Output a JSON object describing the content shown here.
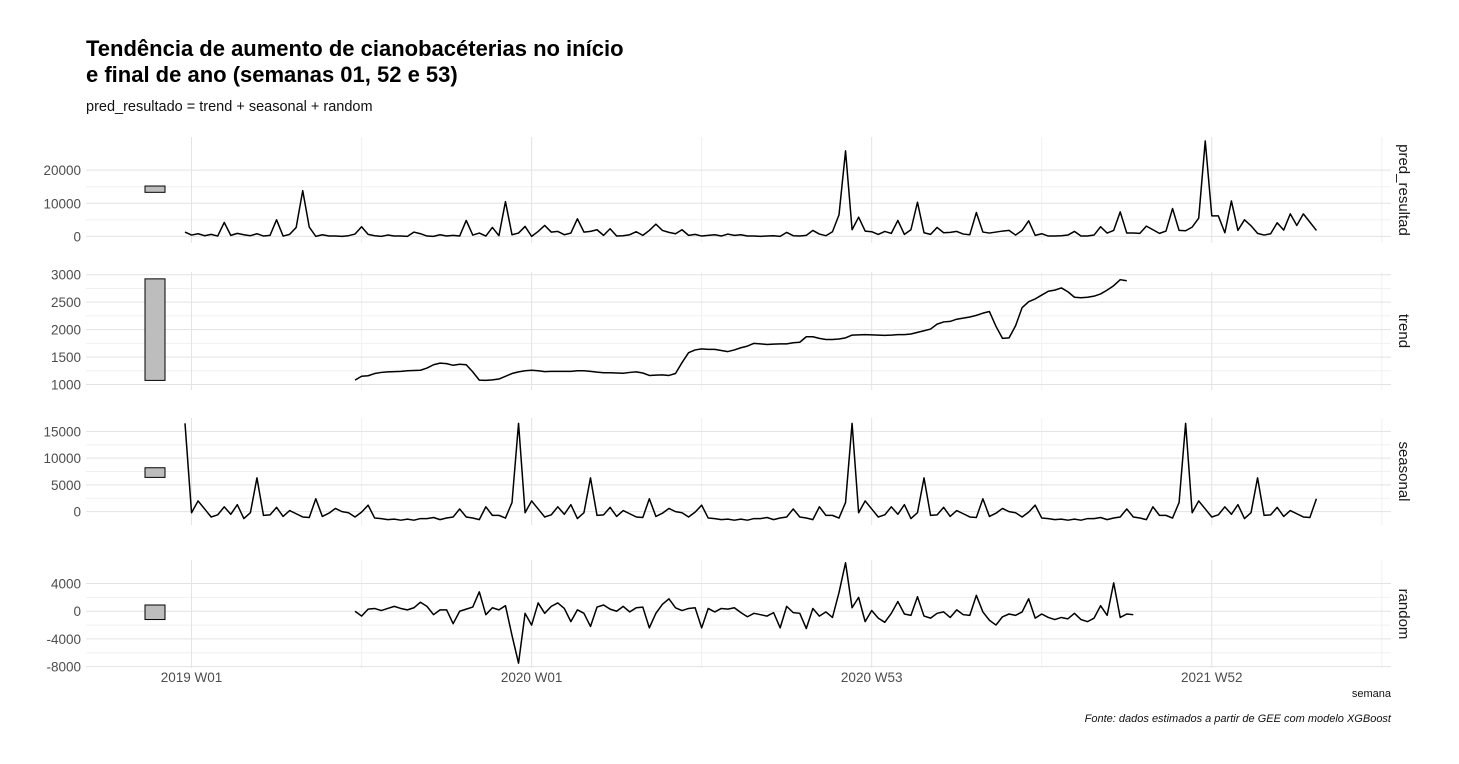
{
  "title": "Tendência de aumento de cianobacéterias no início\ne final de ano (semanas 01, 52 e 53)",
  "subtitle": "pred_resultado = trend + seasonal + random",
  "caption": "Fonte: dados estimados a partir de GEE com modelo XGBoost",
  "chart_data": {
    "type": "line",
    "xlabel": "semana",
    "x_tick_labels": [
      "2019 W01",
      "2020 W01",
      "2020 W53",
      "2021 W52"
    ],
    "x_tick_week_index": [
      1,
      53,
      105,
      157
    ],
    "x_unit": "week index counted from 2019 W01",
    "grid": true,
    "panels": [
      {
        "name": "pred_resultad",
        "ylim": [
          -2000,
          30000
        ],
        "yticks": [
          0,
          10000,
          20000
        ],
        "ytick_labels": [
          "0",
          "10000",
          "20000"
        ],
        "range_bar": [
          13300,
          15200
        ],
        "start_week": 0,
        "values": [
          1300,
          400,
          800,
          200,
          600,
          100,
          4200,
          300,
          900,
          500,
          200,
          800,
          100,
          300,
          5000,
          100,
          600,
          2700,
          13800,
          2800,
          0,
          500,
          100,
          100,
          0,
          200,
          700,
          2900,
          600,
          200,
          0,
          400,
          100,
          100,
          0,
          1300,
          800,
          100,
          0,
          500,
          100,
          300,
          100,
          4800,
          400,
          1000,
          100,
          2700,
          200,
          10500,
          500,
          1000,
          3000,
          0,
          1500,
          3300,
          1300,
          1500,
          500,
          1000,
          5300,
          1300,
          1500,
          2000,
          300,
          2300,
          100,
          200,
          500,
          1400,
          300,
          1800,
          3700,
          1800,
          1200,
          800,
          2000,
          300,
          600,
          100,
          300,
          500,
          100,
          700,
          300,
          500,
          100,
          100,
          0,
          100,
          200,
          0,
          1200,
          200,
          100,
          300,
          1800,
          700,
          200,
          1400,
          6500,
          25800,
          2000,
          5800,
          1600,
          1400,
          600,
          1500,
          900,
          4800,
          600,
          2000,
          10300,
          1100,
          600,
          2700,
          1100,
          1200,
          1500,
          700,
          500,
          7200,
          1300,
          1000,
          1300,
          1600,
          1800,
          400,
          1800,
          4700,
          300,
          800,
          100,
          100,
          200,
          400,
          1500,
          100,
          100,
          400,
          2900,
          1000,
          1800,
          7400,
          1000,
          1000,
          900,
          3100,
          2000,
          900,
          1600,
          8400,
          1800,
          1700,
          2800,
          5500,
          28800,
          6200,
          6200,
          1100,
          10700,
          1800,
          5000,
          3200,
          900,
          400,
          800,
          4100,
          1900,
          6800,
          3300,
          6800,
          4300,
          1800
        ]
      },
      {
        "name": "trend",
        "ylim": [
          900,
          3050
        ],
        "yticks": [
          1000,
          1500,
          2000,
          2500,
          3000
        ],
        "ytick_labels": [
          "1000",
          "1500",
          "2000",
          "2500",
          "3000"
        ],
        "range_bar": [
          1075,
          2925
        ],
        "start_week": 26,
        "values": [
          1080,
          1150,
          1160,
          1200,
          1220,
          1230,
          1235,
          1240,
          1250,
          1255,
          1260,
          1300,
          1360,
          1390,
          1380,
          1350,
          1370,
          1360,
          1230,
          1080,
          1075,
          1085,
          1100,
          1150,
          1200,
          1230,
          1250,
          1260,
          1250,
          1235,
          1240,
          1240,
          1240,
          1240,
          1250,
          1250,
          1240,
          1225,
          1215,
          1215,
          1210,
          1205,
          1220,
          1230,
          1210,
          1165,
          1170,
          1175,
          1165,
          1200,
          1400,
          1580,
          1630,
          1650,
          1640,
          1640,
          1620,
          1600,
          1630,
          1670,
          1700,
          1750,
          1740,
          1730,
          1735,
          1740,
          1740,
          1760,
          1770,
          1870,
          1870,
          1840,
          1820,
          1820,
          1830,
          1850,
          1900,
          1905,
          1910,
          1905,
          1900,
          1895,
          1900,
          1910,
          1910,
          1920,
          1950,
          1980,
          2010,
          2100,
          2140,
          2150,
          2190,
          2210,
          2230,
          2260,
          2300,
          2330,
          2060,
          1840,
          1850,
          2070,
          2400,
          2510,
          2560,
          2630,
          2700,
          2720,
          2760,
          2690,
          2590,
          2580,
          2590,
          2610,
          2650,
          2720,
          2800,
          2910,
          2890
        ]
      },
      {
        "name": "seasonal",
        "ylim": [
          -2500,
          17500
        ],
        "yticks": [
          0,
          5000,
          10000,
          15000
        ],
        "ytick_labels": [
          "0",
          "5000",
          "10000",
          "15000"
        ],
        "range_bar": [
          6400,
          8200
        ],
        "start_week": 0,
        "values": [
          16500,
          -200,
          2000,
          500,
          -1000,
          -600,
          900,
          -500,
          1300,
          -1300,
          -200,
          6300,
          -700,
          -600,
          800,
          -900,
          200,
          -400,
          -1000,
          -1100,
          2400,
          -900,
          -300,
          600,
          0,
          -200,
          -1000,
          -100,
          1200,
          -1200,
          -1300,
          -1500,
          -1400,
          -1600,
          -1400,
          -1600,
          -1300,
          -1300,
          -1100,
          -1500,
          -1200,
          -1000,
          500,
          -1000,
          -1200,
          -1500,
          900,
          -700,
          -700,
          -1200,
          1700,
          16500,
          -200,
          2000,
          500,
          -1000,
          -600,
          900,
          -500,
          1300,
          -1300,
          -200,
          6300,
          -700,
          -600,
          800,
          -900,
          200,
          -400,
          -1000,
          -1100,
          2400,
          -900,
          -300,
          600,
          0,
          -200,
          -1000,
          -100,
          1200,
          -1200,
          -1300,
          -1500,
          -1400,
          -1600,
          -1400,
          -1600,
          -1300,
          -1300,
          -1100,
          -1500,
          -1200,
          -1000,
          500,
          -1000,
          -1200,
          -1500,
          900,
          -700,
          -700,
          -1200,
          1700,
          16500,
          -200,
          2000,
          500,
          -1000,
          -600,
          900,
          -500,
          1300,
          -1300,
          -200,
          6300,
          -700,
          -600,
          800,
          -900,
          200,
          -400,
          -1000,
          -1100,
          2400,
          -900,
          -300,
          600,
          0,
          -200,
          -1000,
          -100,
          1200,
          -1200,
          -1300,
          -1500,
          -1400,
          -1600,
          -1400,
          -1600,
          -1300,
          -1300,
          -1100,
          -1500,
          -1200,
          -1000,
          500,
          -1000,
          -1200,
          -1500,
          900,
          -700,
          -700,
          -1200,
          1700,
          16500,
          -200,
          2000,
          500,
          -1000,
          -600,
          900,
          -500,
          1300,
          -1300,
          -200,
          6300,
          -700,
          -600,
          800,
          -900,
          200,
          -400,
          -1000,
          -1100,
          2400
        ]
      },
      {
        "name": "random",
        "ylim": [
          -8200,
          7400
        ],
        "yticks": [
          -8000,
          -4000,
          0,
          4000
        ],
        "ytick_labels": [
          "-8000",
          "-4000",
          "0",
          "4000"
        ],
        "range_bar": [
          -1200,
          900
        ],
        "start_week": 26,
        "values": [
          0,
          -700,
          300,
          400,
          100,
          400,
          700,
          400,
          200,
          500,
          1300,
          700,
          -500,
          200,
          200,
          -1800,
          0,
          300,
          600,
          2800,
          -500,
          500,
          200,
          800,
          -3500,
          -7500,
          -300,
          -2000,
          1200,
          -300,
          700,
          1200,
          400,
          -1500,
          200,
          -300,
          -2200,
          600,
          900,
          300,
          0,
          700,
          -100,
          500,
          600,
          -2400,
          -300,
          1000,
          1800,
          500,
          100,
          400,
          500,
          -2400,
          400,
          -100,
          400,
          300,
          500,
          -200,
          -800,
          -300,
          -500,
          -700,
          -200,
          -2400,
          700,
          -200,
          -300,
          -2500,
          400,
          -700,
          -100,
          -900,
          2700,
          7000,
          500,
          2000,
          -1500,
          100,
          -1000,
          -1600,
          -300,
          1400,
          -400,
          -600,
          2100,
          -700,
          -1000,
          -300,
          -100,
          -900,
          200,
          -500,
          -600,
          2300,
          -100,
          -1300,
          -2000,
          -800,
          -400,
          -600,
          -100,
          1800,
          -1000,
          -400,
          -900,
          -1200,
          -900,
          -1100,
          -300,
          -1200,
          -1500,
          -1000,
          800,
          -600,
          4100,
          -900,
          -400,
          -500
        ]
      }
    ]
  }
}
